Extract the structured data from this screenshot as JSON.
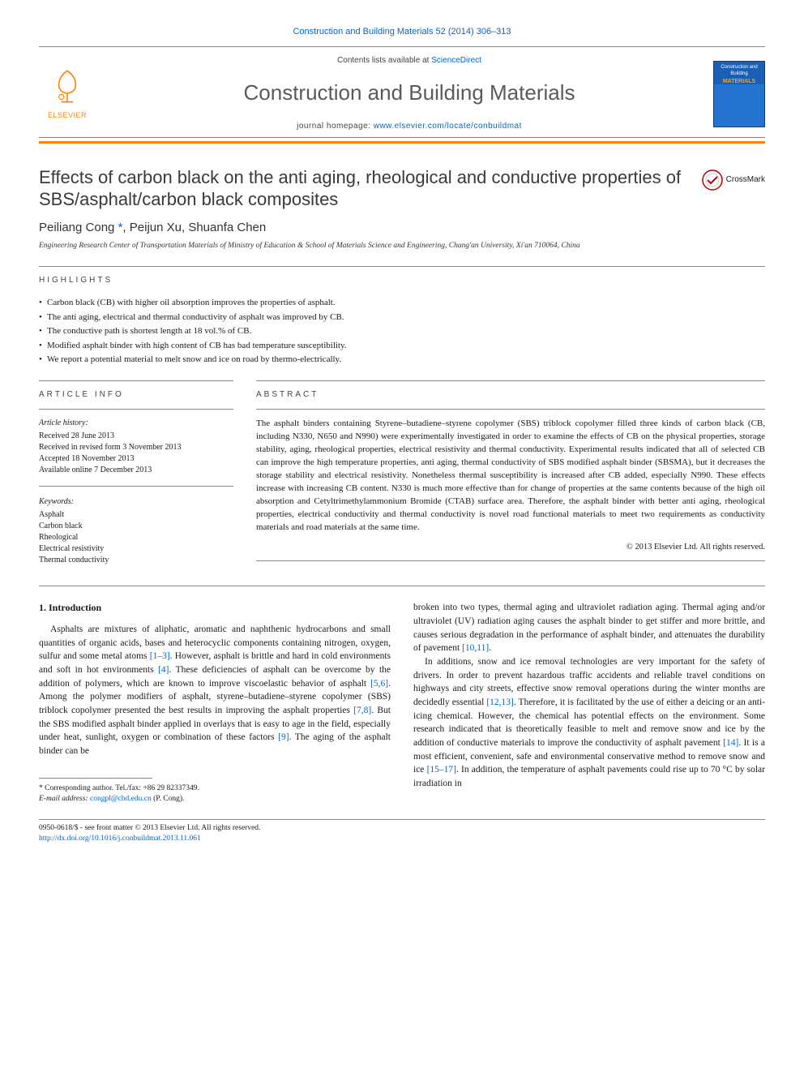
{
  "colors": {
    "link": "#0066cc",
    "accent": "#ff8200",
    "text": "#1a1a1a",
    "muted": "#5a5a5a"
  },
  "citation": "Construction and Building Materials 52 (2014) 306–313",
  "masthead": {
    "contents_prefix": "Contents lists available at ",
    "contents_link": "ScienceDirect",
    "journal_title": "Construction and Building Materials",
    "homepage_prefix": "journal homepage: ",
    "homepage_link": "www.elsevier.com/locate/conbuildmat",
    "publisher": "ELSEVIER",
    "cover_line1": "Construction and Building",
    "cover_line2": "MATERIALS"
  },
  "article": {
    "title": "Effects of carbon black on the anti aging, rheological and conductive properties of SBS/asphalt/carbon black composites",
    "crossmark": "CrossMark",
    "authors_html": "Peiliang Cong *, Peijun Xu, Shuanfa Chen",
    "author1": "Peiliang Cong",
    "author_corr_mark": "*",
    "author2": "Peijun Xu",
    "author3": "Shuanfa Chen",
    "affiliation": "Engineering Research Center of Transportation Materials of Ministry of Education & School of Materials Science and Engineering, Chang'an University, Xi'an 710064, China"
  },
  "highlights": {
    "label": "HIGHLIGHTS",
    "items": [
      "Carbon black (CB) with higher oil absorption improves the properties of asphalt.",
      "The anti aging, electrical and thermal conductivity of asphalt was improved by CB.",
      "The conductive path is shortest length at 18 vol.% of CB.",
      "Modified asphalt binder with high content of CB has bad temperature susceptibility.",
      "We report a potential material to melt snow and ice on road by thermo-electrically."
    ]
  },
  "article_info": {
    "label": "ARTICLE INFO",
    "history_label": "Article history:",
    "history": [
      "Received 28 June 2013",
      "Received in revised form 3 November 2013",
      "Accepted 18 November 2013",
      "Available online 7 December 2013"
    ],
    "keywords_label": "Keywords:",
    "keywords": [
      "Asphalt",
      "Carbon black",
      "Rheological",
      "Electrical resistivity",
      "Thermal conductivity"
    ]
  },
  "abstract": {
    "label": "ABSTRACT",
    "text": "The asphalt binders containing Styrene–butadiene–styrene copolymer (SBS) triblock copolymer filled three kinds of carbon black (CB, including N330, N650 and N990) were experimentally investigated in order to examine the effects of CB on the physical properties, storage stability, aging, rheological properties, electrical resistivity and thermal conductivity. Experimental results indicated that all of selected CB can improve the high temperature properties, anti aging, thermal conductivity of SBS modified asphalt binder (SBSMA), but it decreases the storage stability and electrical resistivity. Nonetheless thermal susceptibility is increased after CB added, especially N990. These effects increase with increasing CB content. N330 is much more effective than for change of properties at the same contents because of the high oil absorption and Cetyltrimethylammonium Bromide (CTAB) surface area. Therefore, the asphalt binder with better anti aging, rheological properties, electrical conductivity and thermal conductivity is novel road functional materials to meet two requirements as conductivity materials and road materials at the same time.",
    "copyright": "© 2013 Elsevier Ltd. All rights reserved."
  },
  "body": {
    "section_heading": "1. Introduction",
    "col1_p1": "Asphalts are mixtures of aliphatic, aromatic and naphthenic hydrocarbons and small quantities of organic acids, bases and heterocyclic components containing nitrogen, oxygen, sulfur and some metal atoms [1–3]. However, asphalt is brittle and hard in cold environments and soft in hot environments [4]. These deficiencies of asphalt can be overcome by the addition of polymers, which are known to improve viscoelastic behavior of asphalt [5,6]. Among the polymer modifiers of asphalt, styrene–butadiene–styrene copolymer (SBS) triblock copolymer presented the best results in improving the asphalt properties [7,8]. But the SBS modified asphalt binder applied in overlays that is easy to age in the field, especially under heat, sunlight, oxygen or combination of these factors [9]. The aging of the asphalt binder can be",
    "col2_p1": "broken into two types, thermal aging and ultraviolet radiation aging. Thermal aging and/or ultraviolet (UV) radiation aging causes the asphalt binder to get stiffer and more brittle, and causes serious degradation in the performance of asphalt binder, and attenuates the durability of pavement [10,11].",
    "col2_p2": "In additions, snow and ice removal technologies are very important for the safety of drivers. In order to prevent hazardous traffic accidents and reliable travel conditions on highways and city streets, effective snow removal operations during the winter months are decidedly essential [12,13]. Therefore, it is facilitated by the use of either a deicing or an anti-icing chemical. However, the chemical has potential effects on the environment. Some research indicated that is theoretically feasible to melt and remove snow and ice by the addition of conductive materials to improve the conductivity of asphalt pavement [14]. It is a most efficient, convenient, safe and environmental conservative method to remove snow and ice [15–17]. In addition, the temperature of asphalt pavements could rise up to 70 °C by solar irradiation in",
    "refs": {
      "r1": "[1–3]",
      "r2": "[4]",
      "r3": "[5,6]",
      "r4": "[7,8]",
      "r5": "[9]",
      "r6": "[10,11]",
      "r7": "[12,13]",
      "r8": "[14]",
      "r9": "[15–17]"
    }
  },
  "footnote": {
    "corr": "* Corresponding author. Tel./fax: +86 29 82337349.",
    "email_label": "E-mail address: ",
    "email": "congpl@chd.edu.cn",
    "email_suffix": " (P. Cong)."
  },
  "footer": {
    "line1": "0950-0618/$ - see front matter © 2013 Elsevier Ltd. All rights reserved.",
    "doi": "http://dx.doi.org/10.1016/j.conbuildmat.2013.11.061"
  }
}
